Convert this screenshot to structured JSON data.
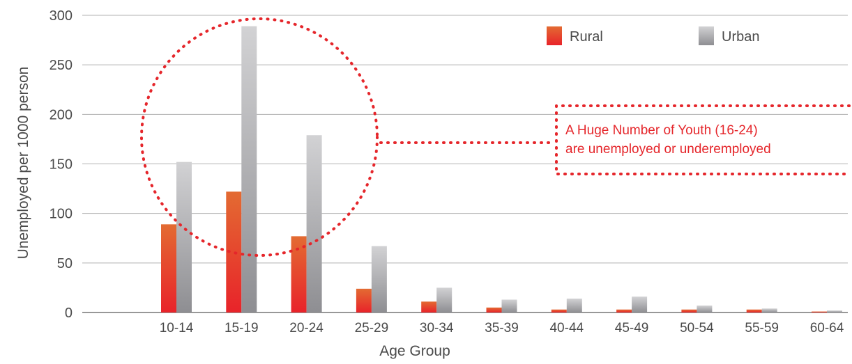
{
  "chart_data": {
    "type": "bar",
    "xlabel": "Age Group",
    "ylabel": "Unemployed per 1000 person",
    "ylim": [
      0,
      300
    ],
    "yticks": [
      0,
      50,
      100,
      150,
      200,
      250,
      300
    ],
    "grid": true,
    "legend": "top-right",
    "categories": [
      "10-14",
      "15-19",
      "20-24",
      "25-29",
      "30-34",
      "35-39",
      "40-44",
      "45-49",
      "50-54",
      "55-59",
      "60-64"
    ],
    "series": [
      {
        "name": "Rural",
        "color": "#e8452a",
        "values": [
          89,
          122,
          77,
          24,
          11,
          5,
          3,
          3,
          3,
          3,
          1
        ]
      },
      {
        "name": "Urban",
        "color": "#b4b4b6",
        "values": [
          152,
          289,
          179,
          67,
          25,
          13,
          14,
          16,
          7,
          4,
          2
        ]
      }
    ],
    "annotation": {
      "lines": [
        "A Huge Number of Youth (16-24)",
        "are unemployed or underemployed"
      ],
      "color": "#e5262b"
    }
  }
}
